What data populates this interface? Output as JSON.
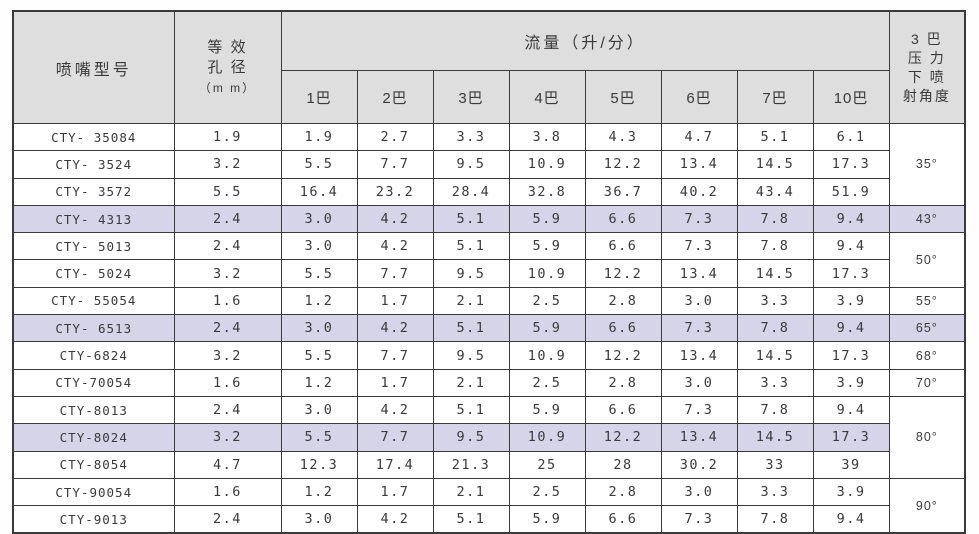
{
  "table": {
    "header": {
      "model_label": "喷嘴型号",
      "aperture_lines": [
        "等 效",
        "孔 径",
        "（m m）"
      ],
      "flow_title": "流量（升/分）",
      "pressures": [
        "1巴",
        "2巴",
        "3巴",
        "4巴",
        "5巴",
        "6巴",
        "7巴",
        "10巴"
      ],
      "angle_lines": [
        "3 巴",
        "压 力",
        "下 喷",
        "射角度"
      ]
    },
    "rows": [
      {
        "model": "CTY- 35084",
        "aperture": "1.9",
        "flows": [
          "1.9",
          "2.7",
          "3.3",
          "3.8",
          "4.3",
          "4.7",
          "5.1",
          "6.1"
        ],
        "highlight": false
      },
      {
        "model": "CTY- 3524",
        "aperture": "3.2",
        "flows": [
          "5.5",
          "7.7",
          "9.5",
          "10.9",
          "12.2",
          "13.4",
          "14.5",
          "17.3"
        ],
        "highlight": false
      },
      {
        "model": "CTY- 3572",
        "aperture": "5.5",
        "flows": [
          "16.4",
          "23.2",
          "28.4",
          "32.8",
          "36.7",
          "40.2",
          "43.4",
          "51.9"
        ],
        "highlight": false
      },
      {
        "model": "CTY- 4313",
        "aperture": "2.4",
        "flows": [
          "3.0",
          "4.2",
          "5.1",
          "5.9",
          "6.6",
          "7.3",
          "7.8",
          "9.4"
        ],
        "highlight": true
      },
      {
        "model": "CTY- 5013",
        "aperture": "2.4",
        "flows": [
          "3.0",
          "4.2",
          "5.1",
          "5.9",
          "6.6",
          "7.3",
          "7.8",
          "9.4"
        ],
        "highlight": false
      },
      {
        "model": "CTY- 5024",
        "aperture": "3.2",
        "flows": [
          "5.5",
          "7.7",
          "9.5",
          "10.9",
          "12.2",
          "13.4",
          "14.5",
          "17.3"
        ],
        "highlight": false
      },
      {
        "model": "CTY- 55054",
        "aperture": "1.6",
        "flows": [
          "1.2",
          "1.7",
          "2.1",
          "2.5",
          "2.8",
          "3.0",
          "3.3",
          "3.9"
        ],
        "highlight": false
      },
      {
        "model": "CTY- 6513",
        "aperture": "2.4",
        "flows": [
          "3.0",
          "4.2",
          "5.1",
          "5.9",
          "6.6",
          "7.3",
          "7.8",
          "9.4"
        ],
        "highlight": true
      },
      {
        "model": "CTY-6824",
        "aperture": "3.2",
        "flows": [
          "5.5",
          "7.7",
          "9.5",
          "10.9",
          "12.2",
          "13.4",
          "14.5",
          "17.3"
        ],
        "highlight": false
      },
      {
        "model": "CTY-70054",
        "aperture": "1.6",
        "flows": [
          "1.2",
          "1.7",
          "2.1",
          "2.5",
          "2.8",
          "3.0",
          "3.3",
          "3.9"
        ],
        "highlight": false
      },
      {
        "model": "CTY-8013",
        "aperture": "2.4",
        "flows": [
          "3.0",
          "4.2",
          "5.1",
          "5.9",
          "6.6",
          "7.3",
          "7.8",
          "9.4"
        ],
        "highlight": false
      },
      {
        "model": "CTY-8024",
        "aperture": "3.2",
        "flows": [
          "5.5",
          "7.7",
          "9.5",
          "10.9",
          "12.2",
          "13.4",
          "14.5",
          "17.3"
        ],
        "highlight": true
      },
      {
        "model": "CTY-8054",
        "aperture": "4.7",
        "flows": [
          "12.3",
          "17.4",
          "21.3",
          "25",
          "28",
          "30.2",
          "33",
          "39"
        ],
        "highlight": false
      },
      {
        "model": "CTY-90054",
        "aperture": "1.6",
        "flows": [
          "1.2",
          "1.7",
          "2.1",
          "2.5",
          "2.8",
          "3.0",
          "3.3",
          "3.9"
        ],
        "highlight": false
      },
      {
        "model": "CTY-9013",
        "aperture": "2.4",
        "flows": [
          "3.0",
          "4.2",
          "5.1",
          "5.9",
          "6.6",
          "7.3",
          "7.8",
          "9.4"
        ],
        "highlight": false
      }
    ],
    "angle_groups": [
      {
        "label": "35°",
        "span": 3,
        "highlight": false
      },
      {
        "label": "43°",
        "span": 1,
        "highlight": true
      },
      {
        "label": "50°",
        "span": 2,
        "highlight": false
      },
      {
        "label": "55°",
        "span": 1,
        "highlight": false
      },
      {
        "label": "65°",
        "span": 1,
        "highlight": true
      },
      {
        "label": "68°",
        "span": 1,
        "highlight": false
      },
      {
        "label": "70°",
        "span": 1,
        "highlight": false
      },
      {
        "label": "80°",
        "span": 3,
        "highlight": false
      },
      {
        "label": "90°",
        "span": 2,
        "highlight": false
      }
    ],
    "colors": {
      "header_bg": "#dedede",
      "highlight_bg": "#d6d4e8",
      "border": "#3a3a3a",
      "text": "#3a3a3a"
    }
  }
}
